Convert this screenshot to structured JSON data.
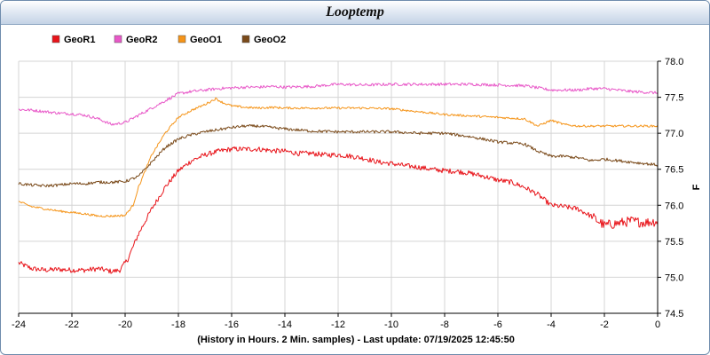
{
  "window": {
    "title": "Looptemp"
  },
  "chart_data": {
    "type": "line",
    "title": "Looptemp",
    "xlabel": "(History in Hours. 2 Min. samples) - Last update: 07/19/2025 12:45:50",
    "ylabel": "F",
    "xlim": [
      -24,
      0
    ],
    "ylim": [
      74.5,
      78.0
    ],
    "x_ticks": [
      -24,
      -22,
      -20,
      -18,
      -16,
      -14,
      -12,
      -10,
      -8,
      -6,
      -4,
      -2,
      0
    ],
    "y_ticks": [
      "74.5",
      "75.0",
      "75.5",
      "76.0",
      "76.5",
      "77.0",
      "77.5",
      "78.0"
    ],
    "grid": true,
    "legend_position": "top-left",
    "series": [
      {
        "name": "GeoR1",
        "color": "#e8141a",
        "x": [
          -24,
          -23.5,
          -23,
          -22.5,
          -22,
          -21.5,
          -21,
          -20.5,
          -20.2,
          -19.9,
          -19.5,
          -19,
          -18.5,
          -18,
          -17.5,
          -17,
          -16.5,
          -16,
          -15.5,
          -15,
          -14.5,
          -14,
          -13.5,
          -13,
          -12.5,
          -12,
          -11.5,
          -11,
          -10.5,
          -10,
          -9.5,
          -9,
          -8.5,
          -8,
          -7.5,
          -7,
          -6.5,
          -6,
          -5.5,
          -5,
          -4.5,
          -4,
          -3.5,
          -3,
          -2.5,
          -2,
          -1.5,
          -1,
          -0.5,
          0
        ],
        "values": [
          75.2,
          75.12,
          75.1,
          75.11,
          75.1,
          75.1,
          75.12,
          75.08,
          75.1,
          75.25,
          75.6,
          75.95,
          76.25,
          76.48,
          76.62,
          76.7,
          76.75,
          76.78,
          76.78,
          76.78,
          76.76,
          76.75,
          76.72,
          76.72,
          76.7,
          76.7,
          76.68,
          76.65,
          76.6,
          76.58,
          76.55,
          76.53,
          76.5,
          76.48,
          76.47,
          76.44,
          76.4,
          76.35,
          76.32,
          76.25,
          76.15,
          76.0,
          75.98,
          75.95,
          75.85,
          75.72,
          75.75,
          75.78,
          75.76,
          75.78
        ]
      },
      {
        "name": "GeoR2",
        "color": "#e858c8",
        "x": [
          -24,
          -23.5,
          -23,
          -22.5,
          -22,
          -21.5,
          -21,
          -20.5,
          -20,
          -19.5,
          -19,
          -18.5,
          -18,
          -17.5,
          -17,
          -16.5,
          -16,
          -15.5,
          -15,
          -14.5,
          -14,
          -13,
          -12,
          -11,
          -10,
          -9,
          -8,
          -7,
          -6,
          -5,
          -4.5,
          -4,
          -3.5,
          -3,
          -2.5,
          -2,
          -1.5,
          -1,
          -0.5,
          0
        ],
        "values": [
          77.33,
          77.32,
          77.3,
          77.28,
          77.27,
          77.25,
          77.2,
          77.12,
          77.15,
          77.25,
          77.35,
          77.45,
          77.55,
          77.58,
          77.6,
          77.62,
          77.63,
          77.64,
          77.64,
          77.65,
          77.64,
          77.65,
          77.68,
          77.67,
          77.68,
          77.68,
          77.68,
          77.68,
          77.67,
          77.66,
          77.63,
          77.6,
          77.6,
          77.6,
          77.62,
          77.62,
          77.6,
          77.58,
          77.57,
          77.56
        ]
      },
      {
        "name": "GeoO1",
        "color": "#f59418",
        "x": [
          -24,
          -23.5,
          -23,
          -22.5,
          -22,
          -21.5,
          -21,
          -20.5,
          -20,
          -19.7,
          -19.5,
          -19,
          -18.5,
          -18,
          -17.5,
          -17,
          -16.6,
          -16.3,
          -16,
          -15.5,
          -15,
          -14.5,
          -14,
          -13,
          -12,
          -11,
          -10,
          -9,
          -8,
          -7,
          -6,
          -5,
          -4.5,
          -4,
          -3.5,
          -3,
          -2,
          -1,
          -0.5,
          0
        ],
        "values": [
          76.05,
          75.98,
          75.95,
          75.92,
          75.9,
          75.88,
          75.85,
          75.85,
          75.86,
          76.0,
          76.25,
          76.7,
          77.0,
          77.22,
          77.32,
          77.4,
          77.48,
          77.42,
          77.38,
          77.36,
          77.35,
          77.36,
          77.35,
          77.35,
          77.35,
          77.35,
          77.34,
          77.3,
          77.26,
          77.24,
          77.22,
          77.2,
          77.1,
          77.18,
          77.12,
          77.1,
          77.1,
          77.1,
          77.1,
          77.1
        ]
      },
      {
        "name": "GeoO2",
        "color": "#7a4a1a",
        "x": [
          -24,
          -23.5,
          -23,
          -22.5,
          -22,
          -21.5,
          -21,
          -20.5,
          -20,
          -19.5,
          -19,
          -18.5,
          -18,
          -17.5,
          -17,
          -16.5,
          -16,
          -15.5,
          -15,
          -14.5,
          -14,
          -13,
          -12,
          -11,
          -10,
          -9,
          -8,
          -7,
          -6,
          -5,
          -4.5,
          -4,
          -3.5,
          -3,
          -2.5,
          -2,
          -1.5,
          -1,
          -0.5,
          0
        ],
        "values": [
          76.3,
          76.28,
          76.27,
          76.28,
          76.3,
          76.3,
          76.32,
          76.32,
          76.33,
          76.4,
          76.6,
          76.8,
          76.92,
          76.98,
          77.02,
          77.05,
          77.08,
          77.1,
          77.1,
          77.08,
          77.06,
          77.03,
          77.02,
          77.02,
          77.02,
          77.0,
          77.0,
          76.95,
          76.88,
          76.85,
          76.75,
          76.68,
          76.68,
          76.66,
          76.62,
          76.64,
          76.62,
          76.6,
          76.58,
          76.56
        ]
      }
    ]
  }
}
